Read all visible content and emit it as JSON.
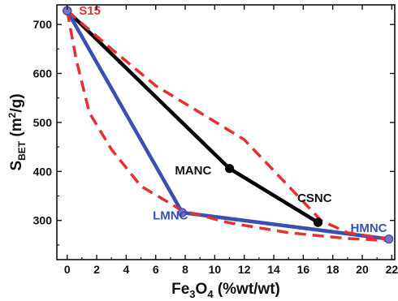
{
  "chart_data": {
    "type": "line",
    "xlabel": {
      "base": "Fe",
      "sub1": "3",
      "mid": "O",
      "sub2": "4",
      "rest": " (%wt/wt)"
    },
    "ylabel": {
      "base": "S",
      "sub": "BET",
      "pre": " (m",
      "sup": "2",
      "post": "/g)"
    },
    "xlim": [
      -0.7,
      22.2
    ],
    "ylim": [
      220,
      740
    ],
    "xticks": [
      0,
      2,
      4,
      6,
      8,
      10,
      12,
      14,
      16,
      18,
      20,
      22
    ],
    "yticks": [
      300,
      400,
      500,
      600,
      700
    ],
    "grid": false,
    "legend": "none",
    "series": [
      {
        "x": [
          0,
          11,
          17
        ],
        "y": [
          728,
          406,
          296
        ],
        "color": "#000000",
        "style": "solid",
        "markers": true
      },
      {
        "x": [
          0,
          7.8,
          21.8
        ],
        "y": [
          728,
          316,
          262
        ],
        "color": "#3a4fb0",
        "style": "solid",
        "markers": true
      },
      {
        "x": [
          0,
          3,
          6,
          9,
          12,
          15,
          17.2,
          19,
          21.8
        ],
        "y": [
          728,
          650,
          575,
          520,
          465,
          370,
          300,
          275,
          262
        ],
        "color": "#e53030",
        "style": "dashed",
        "markers": false
      },
      {
        "x": [
          0,
          0.6,
          1.5,
          3,
          5,
          7.8,
          11,
          15,
          19,
          21.8
        ],
        "y": [
          728,
          630,
          520,
          445,
          370,
          320,
          295,
          275,
          263,
          259
        ],
        "color": "#e53030",
        "style": "dashed",
        "markers": false
      }
    ],
    "annotations": [
      {
        "text": "S15",
        "x": 0.8,
        "y": 728,
        "color": "#e53030"
      },
      {
        "text": "MANC",
        "x": 7.3,
        "y": 402,
        "color": "#111111"
      },
      {
        "text": "CSNC",
        "x": 15.6,
        "y": 346,
        "color": "#111111"
      },
      {
        "text": "LMNC",
        "x": 5.8,
        "y": 310,
        "color": "#3a4fb0"
      },
      {
        "text": "HMNC",
        "x": 19.2,
        "y": 285,
        "color": "#3a4fb0"
      }
    ],
    "marker_fills": {
      "#000000": "#000000",
      "#3a4fb0": "#7a70c8"
    }
  }
}
